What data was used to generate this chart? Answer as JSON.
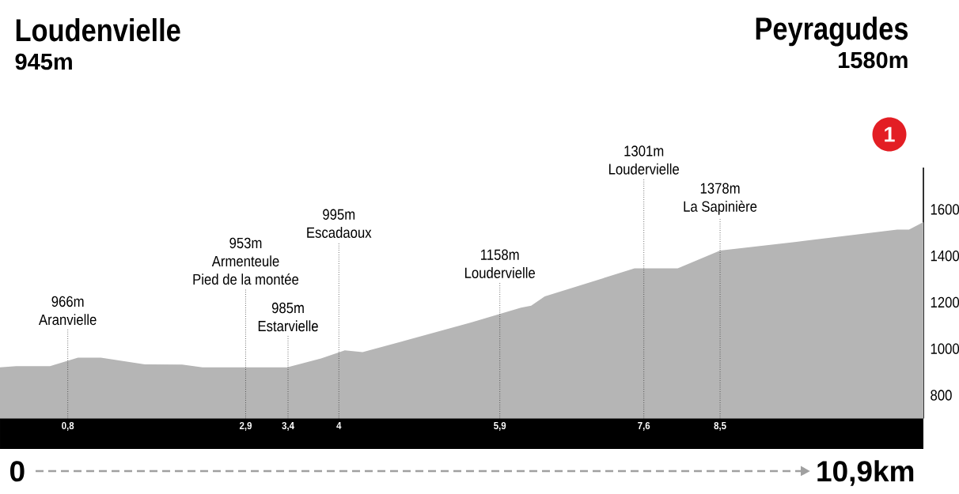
{
  "chart_data": {
    "type": "area",
    "x": [
      0,
      0.19,
      0.59,
      0.92,
      1.19,
      1.71,
      2.15,
      2.39,
      3.39,
      3.79,
      4.07,
      4.28,
      5.56,
      6.15,
      6.27,
      6.43,
      7.49,
      8.0,
      8.5,
      9.4,
      10.59,
      10.73,
      10.9
    ],
    "values": [
      920,
      925,
      925,
      962,
      962,
      933,
      932,
      920,
      920,
      958,
      993,
      985,
      1113,
      1177,
      1185,
      1225,
      1346,
      1346,
      1423,
      1460,
      1513,
      1513,
      1545
    ],
    "color": "#b5b5b5",
    "xlim": [
      0,
      10.9
    ],
    "xticks": [
      {
        "value": 0.8,
        "label": "0,8"
      },
      {
        "value": 2.9,
        "label": "2,9"
      },
      {
        "value": 3.4,
        "label": "3,4"
      },
      4,
      {
        "value": 5.9,
        "label": "5,9"
      },
      {
        "value": 7.6,
        "label": "7,6"
      },
      {
        "value": 8.5,
        "label": "8,5"
      }
    ],
    "ylim": [
      700,
      1780
    ],
    "yticks": [
      800,
      1000,
      1200,
      1400,
      1600
    ],
    "ref_lines": [
      {
        "axis": "x",
        "value": 0.8,
        "label": "966m\nAranvielle",
        "line_style": "dotted",
        "color": "#222222"
      },
      {
        "axis": "x",
        "value": 2.9,
        "label": "953m\nArmenteule\nPied de la montée",
        "line_style": "dotted",
        "color": "#222222"
      },
      {
        "axis": "x",
        "value": 3.4,
        "label": "985m\nEstarvielle",
        "line_style": "dotted",
        "color": "#222222"
      },
      {
        "axis": "x",
        "value": 4,
        "label": "995m\nEscadaoux",
        "line_style": "dotted",
        "color": "#222222"
      },
      {
        "axis": "x",
        "value": 5.9,
        "label": "1158m\nLoudervielle",
        "line_style": "dotted",
        "color": "#222222"
      },
      {
        "axis": "x",
        "value": 7.6,
        "label": "1301m\nLoudervielle",
        "line_style": "dotted",
        "color": "#222222"
      },
      {
        "axis": "x",
        "value": 8.5,
        "label": "1378m\nLa Sapinière",
        "line_style": "dotted",
        "color": "#222222"
      }
    ],
    "annotations": [
      "Loudenvielle",
      "945m",
      "Peyragudes",
      "1580m",
      "1",
      "0",
      "10,9km"
    ]
  }
}
